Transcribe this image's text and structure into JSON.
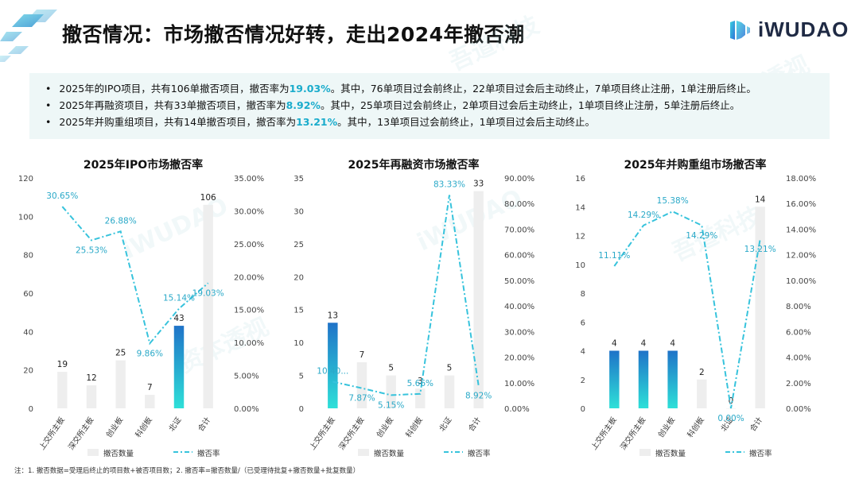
{
  "header": {
    "title": "撤否情况：市场撤否情况好转，走出2024年撤否潮",
    "brand": "iWUDAO"
  },
  "summary": [
    {
      "pre": "2025年的IPO项目，共有106单撤否项目，撤否率为",
      "rate": "19.03%",
      "post": "。其中，76单项目过会前终止，22单项目过会后主动终止，7单项目终止注册，1单注册后终止。"
    },
    {
      "pre": "2025年再融资项目，共有33单撤否项目，撤否率为",
      "rate": "8.92%",
      "post": "。其中，25单项目过会前终止，2单项目过会后主动终止，1单项目终止注册，5单注册后终止。"
    },
    {
      "pre": "2025年并购重组项目，共有14单撤否项目，撤否率为",
      "rate": "13.21%",
      "post": "。其中，13单项目过会前终止，1单项目过会后主动终止。"
    }
  ],
  "note": "注：1. 撤否数据=受理后终止的项目数+被否项目数；2. 撤否率=撤否数量/（已受理待批复+撤否数量+批复数量）",
  "watermark": [
    "吾道科技",
    "iWUDAO",
    "资本透视"
  ],
  "colors": {
    "bar_gradient_top": "#1f73c8",
    "bar_gradient_bottom": "#2ee0d8",
    "bar_gray": "#eeeeee",
    "line": "#37c3dc",
    "label": "#2aa9c8"
  },
  "chart_data": [
    {
      "type": "bar",
      "title": "2025年IPO市场撤否率",
      "categories": [
        "上交所主板",
        "深交所主板",
        "创业板",
        "科创板",
        "北证",
        "合计"
      ],
      "series": [
        {
          "name": "撤否数量",
          "axis": "left",
          "values": [
            19,
            12,
            25,
            7,
            43,
            106
          ],
          "labels": [
            "19",
            "12",
            "25",
            "7",
            "43",
            "106"
          ],
          "highlight": [
            false,
            false,
            false,
            false,
            true,
            false
          ]
        },
        {
          "name": "撤否率",
          "axis": "right",
          "type": "line",
          "values": [
            30.65,
            25.53,
            26.88,
            9.86,
            15.14,
            19.03
          ],
          "labels": [
            "30.65%",
            "25.53%",
            "26.88%",
            "9.86%",
            "15.14%",
            "19.03%"
          ]
        }
      ],
      "ylim_left": [
        0,
        120
      ],
      "yticks_left": [
        "0",
        "20",
        "40",
        "60",
        "80",
        "100",
        "120"
      ],
      "ylim_right": [
        0,
        35
      ],
      "yticks_right": [
        "0.00%",
        "5.00%",
        "10.00%",
        "15.00%",
        "20.00%",
        "25.00%",
        "30.00%",
        "35.00%"
      ],
      "legend": [
        "撤否数量",
        "撤否率"
      ]
    },
    {
      "type": "bar",
      "title": "2025年再融资市场撤否率",
      "categories": [
        "上交所主板",
        "深交所主板",
        "创业板",
        "科创板",
        "北证",
        "合计"
      ],
      "series": [
        {
          "name": "撤否数量",
          "axis": "left",
          "values": [
            13,
            7,
            5,
            3,
            5,
            33
          ],
          "labels": [
            "13",
            "7",
            "5",
            "3",
            "5",
            "33"
          ],
          "highlight": [
            true,
            false,
            false,
            false,
            false,
            false
          ]
        },
        {
          "name": "撤否率",
          "axis": "right",
          "type": "line",
          "values": [
            10.4,
            7.87,
            5.15,
            5.66,
            83.33,
            8.92
          ],
          "labels": [
            "10.40...",
            "7.87%",
            "5.15%",
            "5.66%",
            "83.33%",
            "8.92%"
          ]
        }
      ],
      "ylim_left": [
        0,
        35
      ],
      "yticks_left": [
        "0",
        "5",
        "10",
        "15",
        "20",
        "25",
        "30",
        "35"
      ],
      "ylim_right": [
        0,
        90
      ],
      "yticks_right": [
        "0.00%",
        "10.00%",
        "20.00%",
        "30.00%",
        "40.00%",
        "50.00%",
        "60.00%",
        "70.00%",
        "80.00%",
        "90.00%"
      ],
      "legend": [
        "撤否数量",
        "撤否率"
      ]
    },
    {
      "type": "bar",
      "title": "2025年并购重组市场撤否率",
      "categories": [
        "上交所主板",
        "深交所主板",
        "创业板",
        "科创板",
        "北证",
        "合计"
      ],
      "series": [
        {
          "name": "撤否数量",
          "axis": "left",
          "values": [
            4,
            4,
            4,
            2,
            0,
            14
          ],
          "labels": [
            "4",
            "4",
            "4",
            "2",
            "0",
            "14"
          ],
          "highlight": [
            true,
            true,
            true,
            false,
            false,
            false
          ]
        },
        {
          "name": "撤否率",
          "axis": "right",
          "type": "line",
          "values": [
            11.11,
            14.29,
            15.38,
            14.29,
            0.0,
            13.21
          ],
          "labels": [
            "11.11%",
            "14.29%",
            "15.38%",
            "14.29%",
            "0.00%",
            "13.21%"
          ]
        }
      ],
      "ylim_left": [
        0,
        16
      ],
      "yticks_left": [
        "0",
        "2",
        "4",
        "6",
        "8",
        "10",
        "12",
        "14",
        "16"
      ],
      "ylim_right": [
        0,
        18
      ],
      "yticks_right": [
        "0.00%",
        "2.00%",
        "4.00%",
        "6.00%",
        "8.00%",
        "10.00%",
        "12.00%",
        "14.00%",
        "16.00%",
        "18.00%"
      ],
      "legend": [
        "撤否数量",
        "撤否率"
      ]
    }
  ]
}
